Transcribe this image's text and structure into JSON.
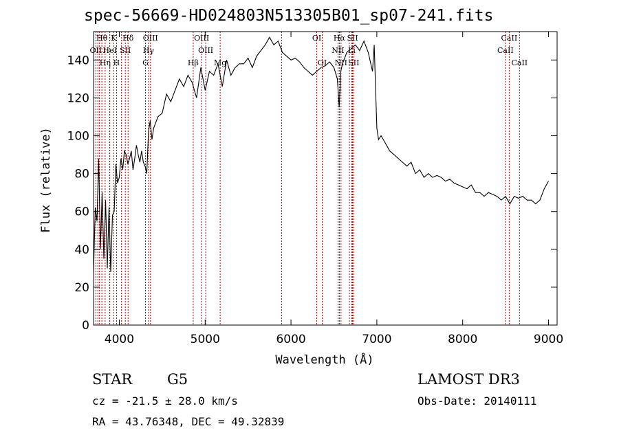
{
  "chart_data": {
    "type": "line",
    "title": "spec-56669-HD024803N513305B01_sp07-241.fits",
    "xlabel": "Wavelength (Å)",
    "ylabel": "Flux (relative)",
    "xlim": [
      3700,
      9100
    ],
    "ylim": [
      0,
      155
    ],
    "x_ticks": [
      4000,
      5000,
      6000,
      7000,
      8000,
      9000
    ],
    "y_ticks": [
      0,
      20,
      40,
      60,
      80,
      100,
      120,
      140
    ],
    "grid": false,
    "line_color": "#000000",
    "marker_color": "#aa0000",
    "series": [
      {
        "x": [
          3700,
          3720,
          3740,
          3760,
          3780,
          3800,
          3820,
          3840,
          3860,
          3880,
          3900,
          3920,
          3940,
          3960,
          3980,
          4000,
          4020,
          4040,
          4060,
          4080,
          4100,
          4120,
          4140,
          4160,
          4180,
          4200,
          4220,
          4240,
          4260,
          4280,
          4300,
          4320,
          4340,
          4360,
          4380,
          4400,
          4450,
          4500,
          4550,
          4600,
          4650,
          4700,
          4750,
          4800,
          4850,
          4900,
          4950,
          5000,
          5050,
          5100,
          5150,
          5200,
          5250,
          5300,
          5350,
          5400,
          5450,
          5500,
          5550,
          5600,
          5650,
          5700,
          5750,
          5800,
          5850,
          5900,
          5950,
          6000,
          6050,
          6100,
          6150,
          6200,
          6250,
          6300,
          6350,
          6400,
          6450,
          6500,
          6540,
          6562,
          6580,
          6600,
          6650,
          6700,
          6750,
          6800,
          6850,
          6900,
          6950,
          6970,
          7000,
          7020,
          7050,
          7100,
          7150,
          7200,
          7250,
          7300,
          7350,
          7400,
          7450,
          7500,
          7550,
          7600,
          7650,
          7700,
          7750,
          7800,
          7850,
          7900,
          7950,
          8000,
          8050,
          8100,
          8150,
          8200,
          8250,
          8300,
          8350,
          8400,
          8450,
          8500,
          8550,
          8600,
          8650,
          8700,
          8750,
          8800,
          8850,
          8900,
          8950,
          9000
        ],
        "y": [
          28,
          62,
          55,
          88,
          40,
          70,
          35,
          66,
          30,
          62,
          28,
          58,
          60,
          85,
          75,
          78,
          88,
          82,
          92,
          90,
          85,
          88,
          92,
          82,
          88,
          95,
          90,
          86,
          92,
          86,
          84,
          80,
          102,
          108,
          98,
          104,
          110,
          112,
          122,
          118,
          124,
          130,
          126,
          132,
          128,
          120,
          136,
          124,
          134,
          132,
          138,
          126,
          140,
          132,
          136,
          138,
          138,
          141,
          136,
          142,
          145,
          148,
          152,
          148,
          150,
          144,
          142,
          140,
          141,
          139,
          136,
          134,
          132,
          134,
          136,
          137,
          139,
          136,
          130,
          115,
          134,
          138,
          144,
          146,
          148,
          145,
          150,
          144,
          134,
          148,
          104,
          98,
          100,
          96,
          92,
          90,
          88,
          86,
          84,
          86,
          80,
          82,
          78,
          80,
          78,
          79,
          78,
          76,
          77,
          75,
          74,
          73,
          72,
          74,
          70,
          70,
          68,
          70,
          69,
          68,
          66,
          68,
          64,
          68,
          67,
          68,
          66,
          66,
          64,
          66,
          72,
          76
        ]
      }
    ],
    "line_markers": [
      {
        "name": "Hθ",
        "row": 0,
        "x": 3797
      },
      {
        "name": "K",
        "row": 0,
        "x": 3934
      },
      {
        "name": "Hδ",
        "row": 0,
        "x": 4102
      },
      {
        "name": "OIII",
        "row": 0,
        "x": 4363
      },
      {
        "name": "OIII",
        "row": 0,
        "x": 4959
      },
      {
        "name": "OI",
        "row": 0,
        "x": 6300
      },
      {
        "name": "Hα",
        "row": 0,
        "x": 6563
      },
      {
        "name": "SII",
        "row": 0,
        "x": 6717
      },
      {
        "name": "CaII",
        "row": 0,
        "x": 8542
      },
      {
        "name": "OII",
        "row": 1,
        "x": 3727
      },
      {
        "name": "HeI",
        "row": 1,
        "x": 3889
      },
      {
        "name": "SII",
        "row": 1,
        "x": 4070
      },
      {
        "name": "Hγ",
        "row": 1,
        "x": 4340
      },
      {
        "name": "OIII",
        "row": 1,
        "x": 5007
      },
      {
        "name": "NII",
        "row": 1,
        "x": 6548
      },
      {
        "name": "Li",
        "row": 1,
        "x": 6708
      },
      {
        "name": "CaII",
        "row": 1,
        "x": 8498
      },
      {
        "name": "Hη",
        "row": 2,
        "x": 3835
      },
      {
        "name": "H",
        "row": 2,
        "x": 3968
      },
      {
        "name": "G",
        "row": 2,
        "x": 4305
      },
      {
        "name": "Hβ",
        "row": 2,
        "x": 4861
      },
      {
        "name": "Mg",
        "row": 2,
        "x": 5175
      },
      {
        "name": "OI",
        "row": 2,
        "x": 6364
      },
      {
        "name": "NII",
        "row": 2,
        "x": 6583
      },
      {
        "name": "SII",
        "row": 2,
        "x": 6731
      },
      {
        "name": "CaII",
        "row": 2,
        "x": 8662
      }
    ],
    "extra_marker_lines": [
      3750,
      3770,
      3889,
      4026,
      5890,
      6680
    ]
  },
  "info": {
    "object_class": "STAR",
    "subclass": "G5",
    "survey": "LAMOST DR3",
    "cz": "cz = -21.5 ± 28.0 km/s",
    "obs_date": "Obs-Date: 20140111",
    "coords": "RA =  43.76348, DEC =  49.32839"
  }
}
